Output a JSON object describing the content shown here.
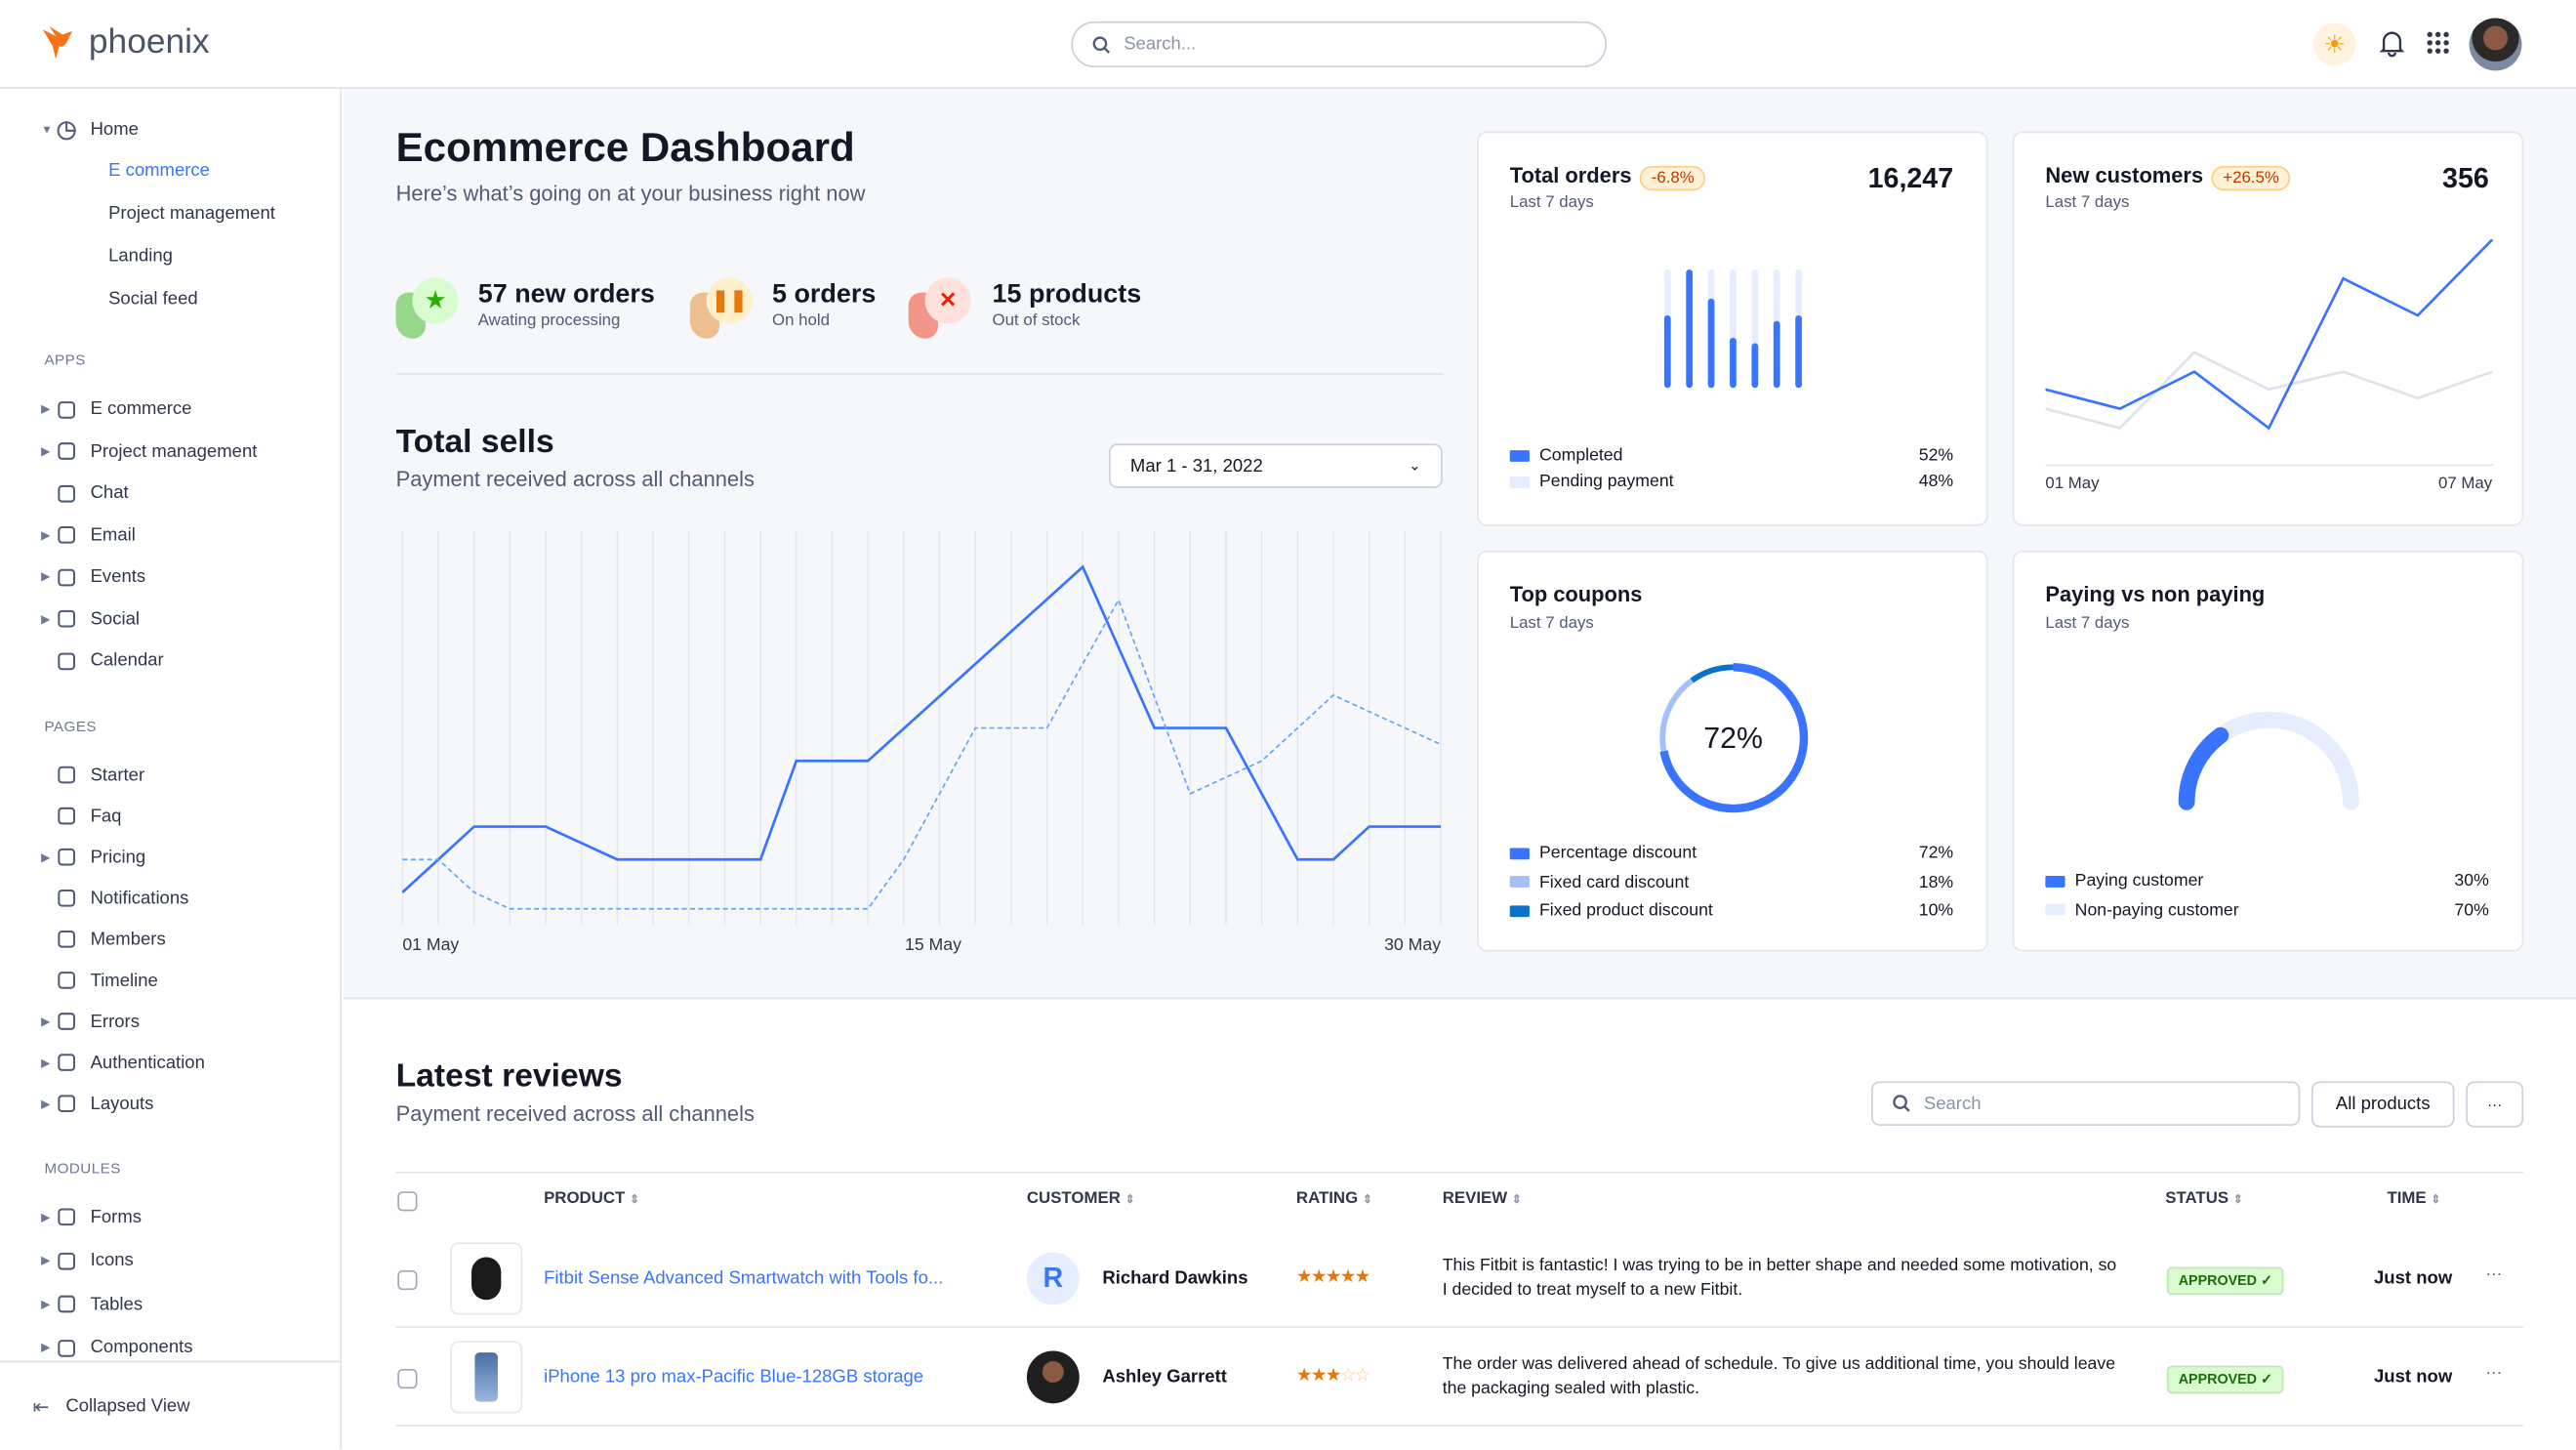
{
  "header": {
    "brand": "phoenix",
    "search_placeholder": "Search...",
    "icons": [
      "sun-icon",
      "bell-icon",
      "apps-grid-icon",
      "avatar"
    ]
  },
  "sidebar": {
    "home": {
      "label": "Home",
      "children": [
        "E commerce",
        "Project management",
        "Landing",
        "Social feed"
      ],
      "active": "E commerce"
    },
    "sections": [
      {
        "title": "APPS",
        "items": [
          {
            "label": "E commerce",
            "icon": "cart-icon",
            "caret": true
          },
          {
            "label": "Project management",
            "icon": "clipboard-icon",
            "caret": true
          },
          {
            "label": "Chat",
            "icon": "chat-icon",
            "caret": false
          },
          {
            "label": "Email",
            "icon": "mail-icon",
            "caret": true
          },
          {
            "label": "Events",
            "icon": "bookmark-icon",
            "caret": true
          },
          {
            "label": "Social",
            "icon": "share-icon",
            "caret": true
          },
          {
            "label": "Calendar",
            "icon": "calendar-icon",
            "caret": false
          }
        ]
      },
      {
        "title": "PAGES",
        "items": [
          {
            "label": "Starter",
            "icon": "compass-icon",
            "caret": false
          },
          {
            "label": "Faq",
            "icon": "help-icon",
            "caret": false
          },
          {
            "label": "Pricing",
            "icon": "tag-icon",
            "caret": true
          },
          {
            "label": "Notifications",
            "icon": "bell-icon",
            "caret": false
          },
          {
            "label": "Members",
            "icon": "users-icon",
            "caret": false
          },
          {
            "label": "Timeline",
            "icon": "clock-icon",
            "caret": false
          },
          {
            "label": "Errors",
            "icon": "alert-icon",
            "caret": true
          },
          {
            "label": "Authentication",
            "icon": "lock-icon",
            "caret": true
          },
          {
            "label": "Layouts",
            "icon": "layout-icon",
            "caret": true
          }
        ]
      },
      {
        "title": "MODULES",
        "items": [
          {
            "label": "Forms",
            "icon": "file-icon",
            "caret": true
          },
          {
            "label": "Icons",
            "icon": "grid-icon",
            "caret": true
          },
          {
            "label": "Tables",
            "icon": "table-icon",
            "caret": true
          },
          {
            "label": "Components",
            "icon": "package-icon",
            "caret": true
          }
        ]
      }
    ],
    "collapse": "Collapsed View"
  },
  "dashboard": {
    "title": "Ecommerce Dashboard",
    "subtitle": "Here’s what’s going on at your business right now",
    "stats": [
      {
        "value": "57 new orders",
        "label": "Awating processing",
        "color": "#25b003",
        "bg": "#d9fbd0",
        "icon": "star-icon"
      },
      {
        "value": "5 orders",
        "label": "On hold",
        "color": "#e5780b",
        "bg": "#ffefca",
        "icon": "pause-icon"
      },
      {
        "value": "15 products",
        "label": "Out of stock",
        "color": "#ed2000",
        "bg": "#ffe0db",
        "icon": "x-icon"
      }
    ]
  },
  "total_sells": {
    "title": "Total sells",
    "subtitle": "Payment received across all channels",
    "date_range": "Mar 1 - 31, 2022"
  },
  "chart_data": [
    {
      "type": "line",
      "id": "total-sells",
      "x_ticks": [
        "01 May",
        "15 May",
        "30 May"
      ],
      "xlim": [
        1,
        30
      ],
      "ylim": [
        0,
        240
      ],
      "grid": "vertical",
      "series": [
        {
          "style": "solid",
          "color": "#3874ff",
          "x": [
            1,
            3,
            5,
            7,
            9,
            11,
            12,
            14,
            20,
            22,
            24,
            26,
            27,
            28,
            30
          ],
          "values": [
            20,
            60,
            60,
            40,
            40,
            40,
            100,
            100,
            218,
            120,
            120,
            40,
            40,
            60,
            60
          ]
        },
        {
          "style": "dashed",
          "color": "#60a5fa",
          "x": [
            1,
            2,
            3,
            4,
            14,
            15,
            17,
            19,
            21,
            23,
            25,
            27,
            30
          ],
          "values": [
            40,
            40,
            20,
            10,
            10,
            40,
            120,
            120,
            198,
            80,
            100,
            140,
            110
          ]
        }
      ]
    },
    {
      "type": "bar",
      "id": "total-orders",
      "values": [
        59,
        100,
        74,
        39,
        34,
        54,
        59
      ],
      "ylim": [
        0,
        100
      ]
    },
    {
      "type": "line",
      "id": "new-customers",
      "x_ticks": [
        "01 May",
        "07 May"
      ],
      "series": [
        {
          "color": "#3874ff",
          "values": [
            215,
            160,
            265,
            105,
            530,
            425,
            640
          ]
        },
        {
          "color": "#dee2ea",
          "values": [
            160,
            105,
            320,
            215,
            265,
            190,
            265
          ]
        }
      ],
      "ylim": [
        0,
        700
      ]
    },
    {
      "type": "pie",
      "id": "top-coupons",
      "center_label": "72%",
      "values": [
        72,
        18,
        10
      ]
    },
    {
      "type": "pie",
      "id": "paying-gauge",
      "values": [
        30,
        70
      ]
    }
  ],
  "cards": {
    "total_orders": {
      "title": "Total orders",
      "badge": "-6.8%",
      "value": "16,247",
      "period": "Last 7 days",
      "legend": [
        {
          "label": "Completed",
          "value": "52%",
          "color": "#3874ff"
        },
        {
          "label": "Pending payment",
          "value": "48%",
          "color": "#e5edff"
        }
      ]
    },
    "new_customers": {
      "title": "New customers",
      "badge": "+26.5%",
      "value": "356",
      "period": "Last 7 days"
    },
    "top_coupons": {
      "title": "Top coupons",
      "period": "Last 7 days",
      "legend": [
        {
          "label": "Percentage discount",
          "value": "72%",
          "color": "#3874ff"
        },
        {
          "label": "Fixed card discount",
          "value": "18%",
          "color": "#a5bffc"
        },
        {
          "label": "Fixed product discount",
          "value": "10%",
          "color": "#0a73c9"
        }
      ]
    },
    "paying": {
      "title": "Paying vs non paying",
      "period": "Last 7 days",
      "legend": [
        {
          "label": "Paying customer",
          "value": "30%",
          "color": "#3874ff"
        },
        {
          "label": "Non-paying customer",
          "value": "70%",
          "color": "#e5edff"
        }
      ]
    }
  },
  "reviews": {
    "title": "Latest reviews",
    "subtitle": "Payment received across all channels",
    "search_placeholder": "Search",
    "filter": "All products",
    "more": "···",
    "columns": [
      "PRODUCT",
      "CUSTOMER",
      "RATING",
      "REVIEW",
      "STATUS",
      "TIME"
    ],
    "rows": [
      {
        "product": "Fitbit Sense Advanced Smartwatch with Tools fo...",
        "customer": "Richard Dawkins",
        "initial": "R",
        "rating": 5,
        "review": "This Fitbit is fantastic! I was trying to be in better shape and needed some motivation, so I decided to treat myself to a new Fitbit.",
        "status": "APPROVED ✓",
        "time": "Just now"
      },
      {
        "product": "iPhone 13 pro max-Pacific Blue-128GB storage",
        "customer": "Ashley Garrett",
        "initial": "",
        "rating": 3,
        "review": "The order was delivered ahead of schedule. To give us additional time, you should leave the packaging sealed with plastic.",
        "status": "APPROVED ✓",
        "time": "Just now"
      }
    ]
  }
}
